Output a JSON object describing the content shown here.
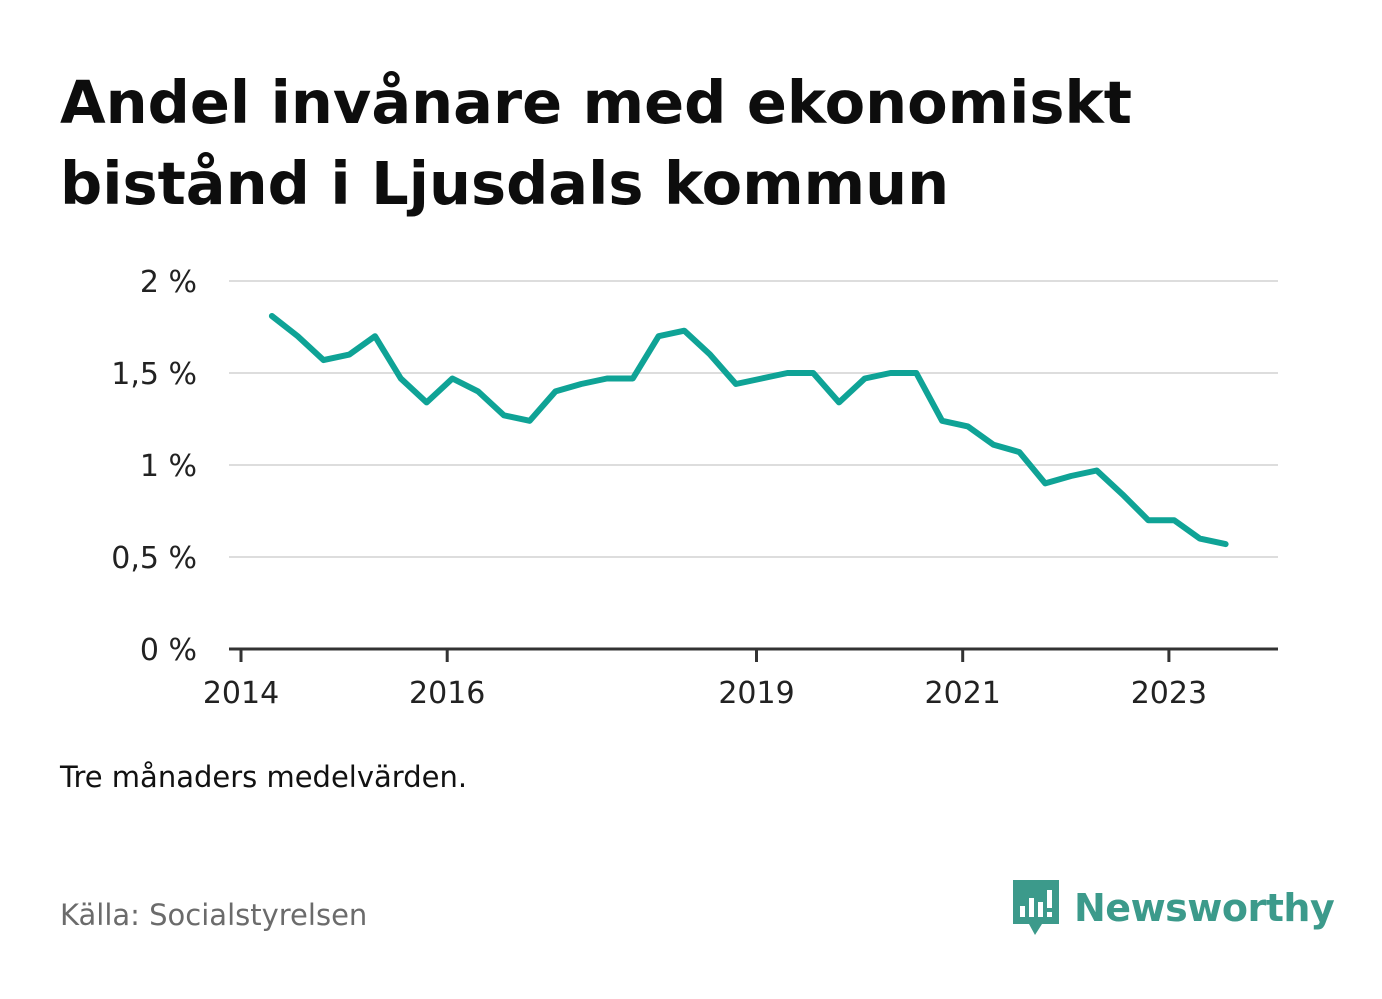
{
  "title_lines": [
    "Andel invånare med ekonomiskt",
    "bistånd i Ljusdals kommun"
  ],
  "note": "Tre månaders medelvärden.",
  "source": "Källa: Socialstyrelsen",
  "brand": {
    "name": "Newsworthy",
    "color": "#3c9a8b",
    "icon": "bar-chart-speech-bubble-icon"
  },
  "chart_data": {
    "type": "line",
    "title": "Andel invånare med ekonomiskt bistånd i Ljusdals kommun",
    "xlabel": "",
    "ylabel": "",
    "line_color": "#0fa396",
    "grid": true,
    "ylim": [
      0,
      2
    ],
    "xlim": [
      2014,
      2024.06
    ],
    "y_ticks": [
      {
        "value": 0,
        "label": "0 %"
      },
      {
        "value": 0.5,
        "label": "0,5 %"
      },
      {
        "value": 1,
        "label": "1 %"
      },
      {
        "value": 1.5,
        "label": "1,5 %"
      },
      {
        "value": 2,
        "label": "2 %"
      }
    ],
    "x_ticks": [
      {
        "value": 2014,
        "label": "2014"
      },
      {
        "value": 2016,
        "label": "2016"
      },
      {
        "value": 2019,
        "label": "2019"
      },
      {
        "value": 2021,
        "label": "2021"
      },
      {
        "value": 2023,
        "label": "2023"
      }
    ],
    "series": [
      {
        "x": [
          2014.3,
          2014.55,
          2014.8,
          2015.05,
          2015.3,
          2015.55,
          2015.8,
          2016.05,
          2016.3,
          2016.55,
          2016.8,
          2017.05,
          2017.3,
          2017.55,
          2017.8,
          2018.05,
          2018.3,
          2018.55,
          2018.8,
          2019.05,
          2019.3,
          2019.55,
          2019.8,
          2020.05,
          2020.3,
          2020.55,
          2020.8,
          2021.05,
          2021.3,
          2021.55,
          2021.8,
          2022.05,
          2022.3,
          2022.55,
          2022.8,
          2023.05,
          2023.3,
          2023.55
        ],
        "values": [
          1.81,
          1.7,
          1.57,
          1.6,
          1.7,
          1.47,
          1.34,
          1.47,
          1.4,
          1.27,
          1.24,
          1.4,
          1.44,
          1.47,
          1.47,
          1.7,
          1.73,
          1.6,
          1.44,
          1.47,
          1.5,
          1.5,
          1.34,
          1.47,
          1.5,
          1.5,
          1.24,
          1.21,
          1.11,
          1.07,
          0.9,
          0.94,
          0.97,
          0.84,
          0.7,
          0.7,
          0.6,
          0.57
        ]
      }
    ]
  }
}
